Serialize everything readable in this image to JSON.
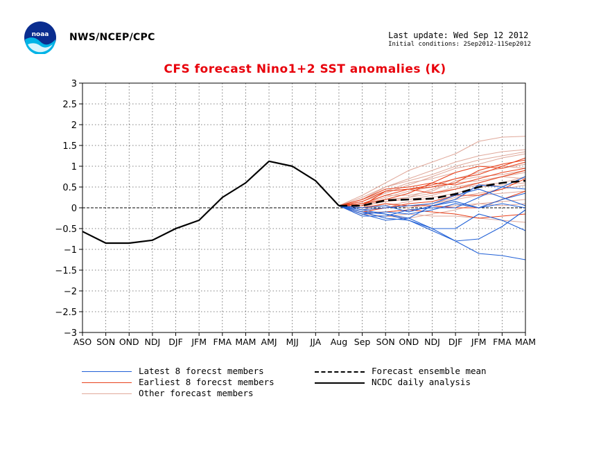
{
  "header": {
    "agency": "NWS/NCEP/CPC",
    "last_update": "Last update: Wed Sep 12 2012",
    "initial_conditions": "Initial conditions: 2Sep2012-11Sep2012"
  },
  "legend": {
    "latest": "Latest 8 forecst members",
    "earliest": "Earliest 8 forecst members",
    "other": "Other forecast members",
    "mean": "Forecast ensemble mean",
    "ncdc": "NCDC daily analysis"
  },
  "colors": {
    "title": "#e8000b",
    "latest": "#1f5fd6",
    "earliest": "#e8401b",
    "other": "#e0a89a",
    "ncdc": "#000000",
    "mean": "#000000"
  },
  "chart_data": {
    "type": "line",
    "title": "CFS forecast Nino1+2 SST anomalies (K)",
    "categories": [
      "ASO",
      "SON",
      "OND",
      "NDJ",
      "DJF",
      "JFM",
      "FMA",
      "MAM",
      "AMJ",
      "MJJ",
      "JJA",
      "Aug",
      "Sep",
      "SON",
      "OND",
      "NDJ",
      "DJF",
      "JFM",
      "FMA",
      "MAM"
    ],
    "ylim": [
      -3,
      3
    ],
    "yticks": [
      "3",
      "2.5",
      "2",
      "1.5",
      "1",
      "0.5",
      "0",
      "−0.5",
      "−1",
      "−1.5",
      "−2",
      "−2.5",
      "−3"
    ],
    "grid": true,
    "observed": {
      "name": "NCDC daily analysis",
      "values": [
        -0.57,
        -0.85,
        -0.85,
        -0.78,
        -0.5,
        -0.3,
        0.25,
        0.6,
        1.12,
        1.0,
        0.65,
        0.05
      ]
    },
    "ensemble_mean": {
      "name": "Forecast ensemble mean",
      "start_index": 11,
      "values": [
        0.05,
        0.05,
        0.18,
        0.2,
        0.22,
        0.33,
        0.5,
        0.6,
        0.65
      ]
    },
    "members_latest": [
      [
        0.05,
        -0.05,
        -0.15,
        -0.3,
        -0.55,
        -0.8,
        -1.1,
        -1.15,
        -1.25
      ],
      [
        0.05,
        -0.1,
        -0.15,
        -0.25,
        -0.5,
        -0.8,
        -0.75,
        -0.45,
        -0.05
      ],
      [
        0.05,
        -0.1,
        -0.25,
        -0.3,
        -0.5,
        -0.5,
        -0.15,
        -0.3,
        -0.55
      ],
      [
        0.05,
        -0.15,
        -0.1,
        -0.15,
        -0.05,
        0.1,
        0.0,
        0.2,
        0.35
      ],
      [
        0.05,
        -0.05,
        0.0,
        0.05,
        0.1,
        0.3,
        0.45,
        0.25,
        0.05
      ],
      [
        0.05,
        -0.2,
        -0.2,
        -0.05,
        0.0,
        0.0,
        0.25,
        0.5,
        0.75
      ],
      [
        0.05,
        0.0,
        0.05,
        -0.1,
        0.05,
        0.15,
        0.0,
        0.1,
        0.0
      ],
      [
        0.05,
        -0.15,
        -0.3,
        -0.25,
        0.05,
        0.2,
        0.55,
        0.5,
        0.45
      ]
    ],
    "members_earliest": [
      [
        0.05,
        0.1,
        0.3,
        0.45,
        0.55,
        0.7,
        0.8,
        1.0,
        1.2
      ],
      [
        0.05,
        0.05,
        0.4,
        0.45,
        0.5,
        0.6,
        0.9,
        1.05,
        1.15
      ],
      [
        0.05,
        0.15,
        0.4,
        0.45,
        0.35,
        0.45,
        0.6,
        0.75,
        0.9
      ],
      [
        0.05,
        0.0,
        0.1,
        0.05,
        0.05,
        0.0,
        0.0,
        0.2,
        0.4
      ],
      [
        0.05,
        -0.15,
        -0.1,
        -0.05,
        -0.1,
        -0.15,
        -0.25,
        -0.2,
        -0.15
      ],
      [
        0.05,
        0.1,
        0.2,
        0.35,
        0.6,
        0.85,
        1.0,
        0.95,
        1.1
      ],
      [
        0.05,
        0.2,
        0.45,
        0.5,
        0.6,
        0.55,
        0.7,
        0.85,
        0.95
      ],
      [
        0.05,
        -0.1,
        0.0,
        0.1,
        0.15,
        0.3,
        0.3,
        0.45,
        0.7
      ]
    ],
    "members_other": [
      [
        0.05,
        0.3,
        0.6,
        0.9,
        1.1,
        1.3,
        1.6,
        1.7,
        1.72
      ],
      [
        0.05,
        0.2,
        0.5,
        0.7,
        0.9,
        1.1,
        1.25,
        1.35,
        1.4
      ],
      [
        0.05,
        0.15,
        0.35,
        0.55,
        0.75,
        0.95,
        1.05,
        1.2,
        1.3
      ],
      [
        0.05,
        0.1,
        0.25,
        0.4,
        0.5,
        0.7,
        0.85,
        0.95,
        1.05
      ],
      [
        0.05,
        0.05,
        0.15,
        0.25,
        0.35,
        0.5,
        0.6,
        0.75,
        0.85
      ],
      [
        0.05,
        0.0,
        0.05,
        0.15,
        0.25,
        0.35,
        0.5,
        0.55,
        0.6
      ],
      [
        0.05,
        -0.05,
        0.0,
        0.05,
        0.1,
        0.2,
        0.3,
        0.35,
        0.4
      ],
      [
        0.05,
        -0.1,
        -0.1,
        -0.05,
        0.0,
        0.05,
        0.1,
        0.15,
        0.2
      ],
      [
        0.05,
        -0.2,
        -0.2,
        -0.15,
        -0.2,
        -0.2,
        -0.25,
        -0.3,
        -0.35
      ],
      [
        0.05,
        0.2,
        0.4,
        0.6,
        0.7,
        0.85,
        1.0,
        1.0,
        0.95
      ],
      [
        0.05,
        0.1,
        0.3,
        0.3,
        0.4,
        0.65,
        0.75,
        0.8,
        0.9
      ],
      [
        0.05,
        0.0,
        0.2,
        0.25,
        0.45,
        0.6,
        0.65,
        0.75,
        0.7
      ],
      [
        0.05,
        -0.15,
        -0.2,
        -0.25,
        -0.15,
        -0.05,
        0.1,
        0.05,
        0.1
      ],
      [
        0.05,
        0.1,
        0.15,
        0.2,
        0.3,
        0.45,
        0.55,
        0.6,
        0.75
      ],
      [
        0.05,
        -0.05,
        0.1,
        0.0,
        0.1,
        0.25,
        0.35,
        0.45,
        0.55
      ],
      [
        0.05,
        0.25,
        0.5,
        0.65,
        0.8,
        1.0,
        1.15,
        1.25,
        1.35
      ]
    ]
  }
}
